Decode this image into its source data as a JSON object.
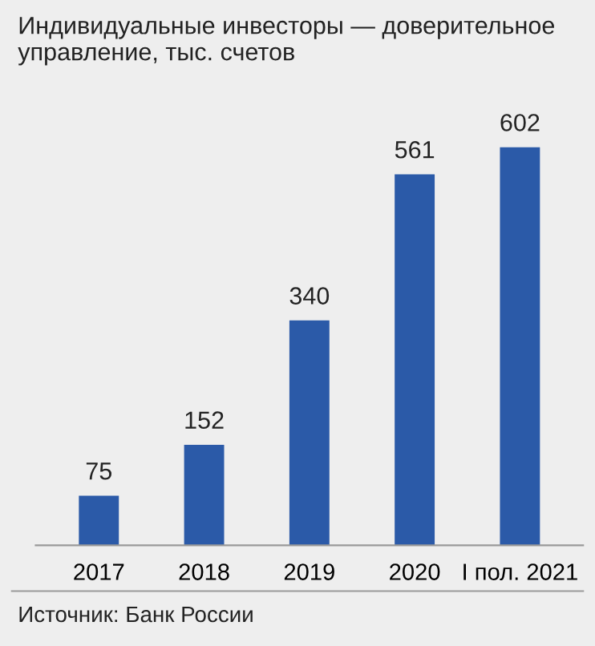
{
  "chart_data": {
    "type": "bar",
    "title": "Индивидуальные инвесторы — доверительное\nуправление, тыс. счетов",
    "categories": [
      "2017",
      "2018",
      "2019",
      "2020",
      "I пол. 2021"
    ],
    "values": [
      75,
      152,
      340,
      561,
      602
    ],
    "color": "#2b5aa8",
    "data_labels": true,
    "grid": false,
    "legend": false,
    "annotations": [
      "Источник: Банк России"
    ]
  }
}
